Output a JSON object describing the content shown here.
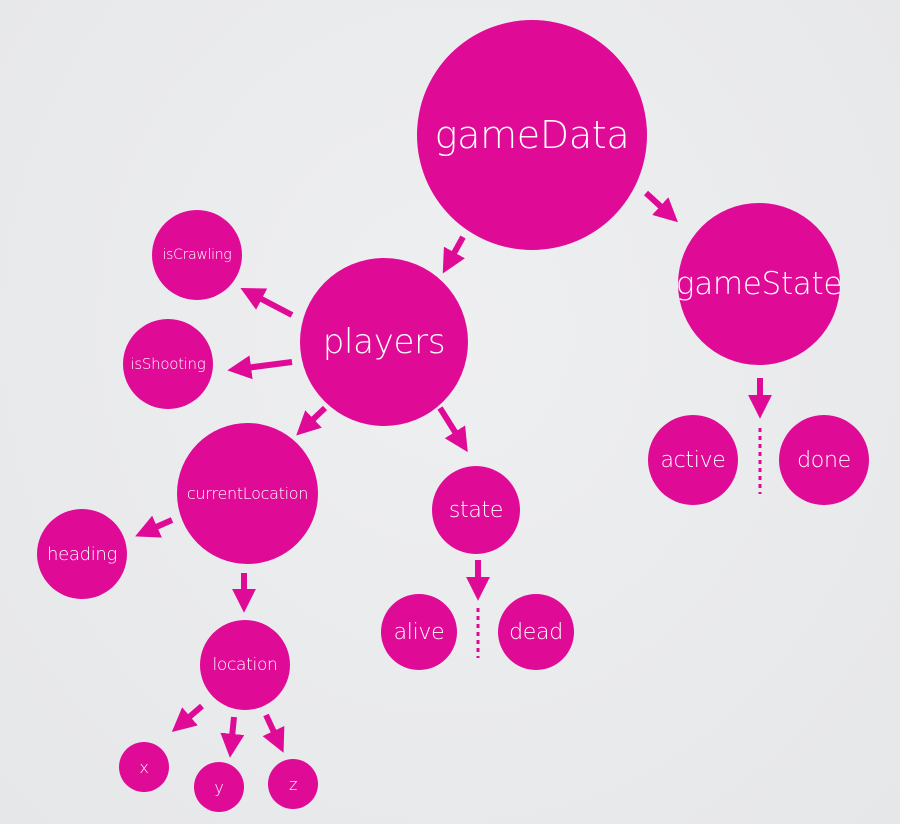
{
  "colors": {
    "node": "#df0a96",
    "background": "#e8e9eb",
    "text": "#ffffff"
  },
  "nodes": {
    "gameData": "gameData",
    "gameState": "gameState",
    "players": "players",
    "isCrawling": "isCrawling",
    "isShooting": "isShooting",
    "currentLocation": "currentLocation",
    "heading": "heading",
    "state": "state",
    "alive": "alive",
    "dead": "dead",
    "location": "location",
    "x": "x",
    "y": "y",
    "z": "z",
    "active": "active",
    "done": "done"
  }
}
